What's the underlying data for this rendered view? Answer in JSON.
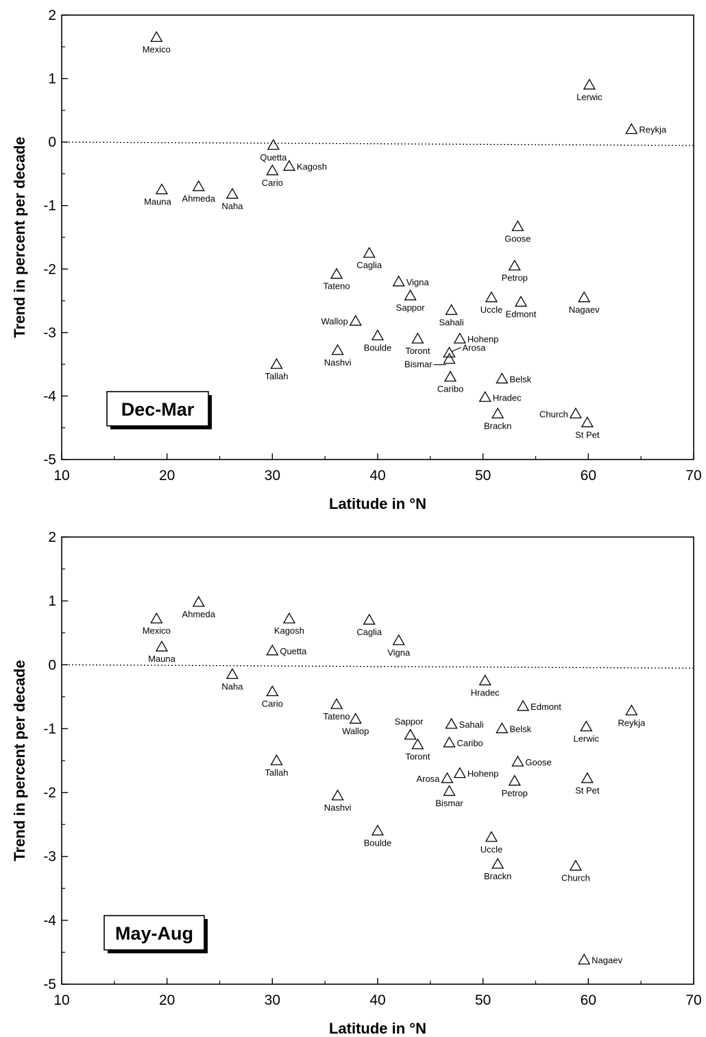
{
  "chart_data": [
    {
      "type": "scatter",
      "season_label": "Dec-Mar",
      "xlabel": "Latitude in °N",
      "ylabel": "Trend in percent per decade",
      "xlim": [
        10,
        70
      ],
      "ylim": [
        -5,
        2
      ],
      "xticks": [
        "10",
        "20",
        "30",
        "40",
        "50",
        "60",
        "70"
      ],
      "yticks": [
        "-5",
        "-4",
        "-3",
        "-2",
        "-1",
        "0",
        "1",
        "2"
      ],
      "grid": false,
      "reference_line": 0,
      "points": [
        {
          "name": "Mexico",
          "x": 19.0,
          "y": 1.65
        },
        {
          "name": "Lerwic",
          "x": 60.1,
          "y": 0.9
        },
        {
          "name": "Reykja",
          "x": 64.1,
          "y": 0.2
        },
        {
          "name": "Quetta",
          "x": 30.1,
          "y": -0.05
        },
        {
          "name": "Kagosh",
          "x": 31.6,
          "y": -0.38
        },
        {
          "name": "Cario",
          "x": 30.0,
          "y": -0.45
        },
        {
          "name": "Mauna",
          "x": 19.5,
          "y": -0.75
        },
        {
          "name": "Ahmeda",
          "x": 23.0,
          "y": -0.7
        },
        {
          "name": "Naha",
          "x": 26.2,
          "y": -0.82
        },
        {
          "name": "Goose",
          "x": 53.3,
          "y": -1.33
        },
        {
          "name": "Caglia",
          "x": 39.2,
          "y": -1.75
        },
        {
          "name": "Tateno",
          "x": 36.1,
          "y": -2.08
        },
        {
          "name": "Petrop",
          "x": 53.0,
          "y": -1.95
        },
        {
          "name": "Vigna",
          "x": 42.0,
          "y": -2.2
        },
        {
          "name": "Sappor",
          "x": 43.1,
          "y": -2.42
        },
        {
          "name": "Uccle",
          "x": 50.8,
          "y": -2.45
        },
        {
          "name": "Edmont",
          "x": 53.6,
          "y": -2.52
        },
        {
          "name": "Nagaev",
          "x": 59.6,
          "y": -2.45
        },
        {
          "name": "Sahali",
          "x": 47.0,
          "y": -2.65
        },
        {
          "name": "Wallop",
          "x": 37.9,
          "y": -2.82
        },
        {
          "name": "Boulde",
          "x": 40.0,
          "y": -3.05
        },
        {
          "name": "Toront",
          "x": 43.8,
          "y": -3.1
        },
        {
          "name": "Hohenp",
          "x": 47.8,
          "y": -3.1
        },
        {
          "name": "Arosa",
          "x": 46.8,
          "y": -3.32
        },
        {
          "name": "Bismar",
          "x": 46.8,
          "y": -3.42
        },
        {
          "name": "Nashvi",
          "x": 36.2,
          "y": -3.28
        },
        {
          "name": "Tallah",
          "x": 30.4,
          "y": -3.5
        },
        {
          "name": "Caribo",
          "x": 46.9,
          "y": -3.7
        },
        {
          "name": "Belsk",
          "x": 51.8,
          "y": -3.73
        },
        {
          "name": "Hradec",
          "x": 50.2,
          "y": -4.02
        },
        {
          "name": "Brackn",
          "x": 51.4,
          "y": -4.28
        },
        {
          "name": "Church",
          "x": 58.8,
          "y": -4.28
        },
        {
          "name": "St Pet",
          "x": 59.9,
          "y": -4.42
        }
      ]
    },
    {
      "type": "scatter",
      "season_label": "May-Aug",
      "xlabel": "Latitude in °N",
      "ylabel": "Trend in percent per decade",
      "xlim": [
        10,
        70
      ],
      "ylim": [
        -5,
        2
      ],
      "xticks": [
        "10",
        "20",
        "30",
        "40",
        "50",
        "60",
        "70"
      ],
      "yticks": [
        "-5",
        "-4",
        "-3",
        "-2",
        "-1",
        "0",
        "1",
        "2"
      ],
      "grid": false,
      "reference_line": 0,
      "points": [
        {
          "name": "Ahmeda",
          "x": 23.0,
          "y": 0.98
        },
        {
          "name": "Mexico",
          "x": 19.0,
          "y": 0.72
        },
        {
          "name": "Kagosh",
          "x": 31.6,
          "y": 0.72
        },
        {
          "name": "Caglia",
          "x": 39.2,
          "y": 0.7
        },
        {
          "name": "Vigna",
          "x": 42.0,
          "y": 0.38
        },
        {
          "name": "Mauna",
          "x": 19.5,
          "y": 0.28
        },
        {
          "name": "Quetta",
          "x": 30.0,
          "y": 0.22
        },
        {
          "name": "Naha",
          "x": 26.2,
          "y": -0.15
        },
        {
          "name": "Hradec",
          "x": 50.2,
          "y": -0.25
        },
        {
          "name": "Cario",
          "x": 30.0,
          "y": -0.42
        },
        {
          "name": "Edmont",
          "x": 53.8,
          "y": -0.65
        },
        {
          "name": "Tateno",
          "x": 36.1,
          "y": -0.62
        },
        {
          "name": "Reykja",
          "x": 64.1,
          "y": -0.72
        },
        {
          "name": "Wallop",
          "x": 37.9,
          "y": -0.85
        },
        {
          "name": "Sahali",
          "x": 47.0,
          "y": -0.93
        },
        {
          "name": "Belsk",
          "x": 51.8,
          "y": -1.0
        },
        {
          "name": "Lerwic",
          "x": 59.8,
          "y": -0.97
        },
        {
          "name": "Sappor",
          "x": 43.1,
          "y": -1.1
        },
        {
          "name": "Caribo",
          "x": 46.8,
          "y": -1.22
        },
        {
          "name": "Toront",
          "x": 43.8,
          "y": -1.25
        },
        {
          "name": "Goose",
          "x": 53.3,
          "y": -1.52
        },
        {
          "name": "Tallah",
          "x": 30.4,
          "y": -1.5
        },
        {
          "name": "Hohenp",
          "x": 47.8,
          "y": -1.7
        },
        {
          "name": "Arosa",
          "x": 46.6,
          "y": -1.78
        },
        {
          "name": "Petrop",
          "x": 53.0,
          "y": -1.82
        },
        {
          "name": "St Pet",
          "x": 59.9,
          "y": -1.78
        },
        {
          "name": "Bismar",
          "x": 46.8,
          "y": -1.98
        },
        {
          "name": "Nashvi",
          "x": 36.2,
          "y": -2.05
        },
        {
          "name": "Boulde",
          "x": 40.0,
          "y": -2.6
        },
        {
          "name": "Uccle",
          "x": 50.8,
          "y": -2.7
        },
        {
          "name": "Brackn",
          "x": 51.4,
          "y": -3.12
        },
        {
          "name": "Church",
          "x": 58.8,
          "y": -3.15
        },
        {
          "name": "Nagaev",
          "x": 59.6,
          "y": -4.62
        }
      ]
    }
  ]
}
